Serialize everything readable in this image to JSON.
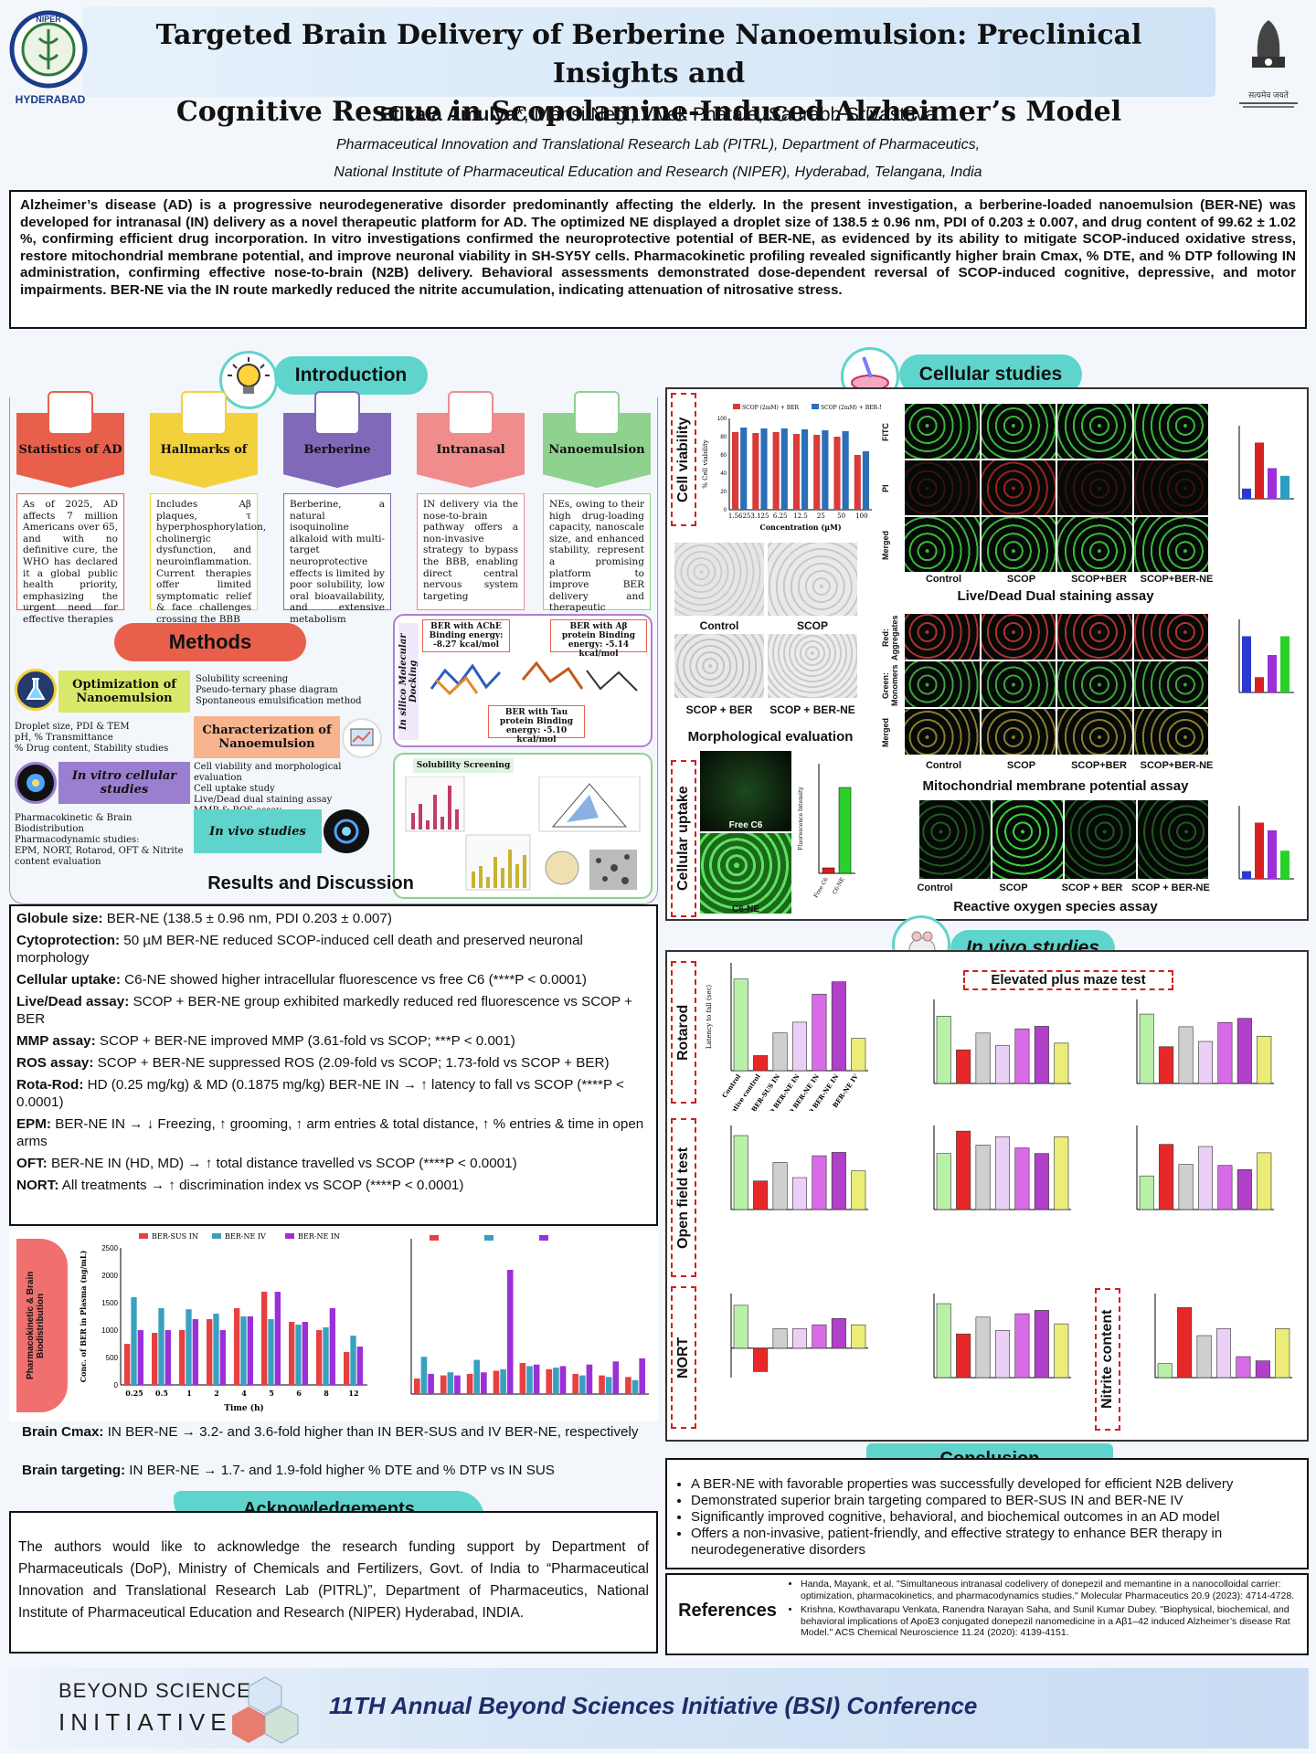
{
  "header": {
    "title_line1": "Targeted Brain Delivery of Berberine Nanoemulsion: Preclinical Insights and",
    "title_line2": "Cognitive Rescue in Scopolamine-Induced Alzheimer’s Model",
    "authors_first": "Etikala Amulya",
    "authors_rest": "*, Mansi Negi, Vivek Phatale, Saurabh Srivastava",
    "affiliation_1": "Pharmaceutical Innovation and Translational Research Lab (PITRL), Department of Pharmaceutics,",
    "affiliation_2": "National Institute of Pharmaceutical Education and Research (NIPER), Hyderabad, Telangana, India",
    "logo_left_text": "HYDERABAD",
    "logo_left_ring": "NIPER",
    "logo_right_text": "सत्यमेव जयते"
  },
  "abstract": "Alzheimer’s disease (AD) is a progressive neurodegenerative disorder predominantly affecting the elderly. In the present investigation, a berberine-loaded nanoemulsion (BER-NE) was developed for intranasal (IN) delivery as a novel therapeutic platform for AD. The optimized NE displayed a droplet size of 138.5 ± 0.96 nm, PDI of 0.203 ± 0.007, and drug content of 99.62 ± 1.02 %, confirming efficient drug incorporation. In vitro investigations confirmed the neuroprotective potential of BER-NE, as evidenced by its ability to mitigate SCOP-induced oxidative stress, restore mitochondrial membrane potential, and improve neuronal viability in SH-SY5Y cells. Pharmacokinetic profiling revealed significantly higher brain Cmax, % DTE, and % DTP following IN administration, confirming effective nose-to-brain (N2B) delivery. Behavioral assessments demonstrated dose-dependent reversal of SCOP-induced cognitive, depressive, and motor impairments. BER-NE via the IN route markedly reduced the nitrite accumulation, indicating attenuation of nitrosative stress.",
  "introduction": {
    "heading": "Introduction",
    "cards": [
      {
        "title": "Statistics of AD",
        "color": "#e8604c",
        "text": "As of 2025, AD affects 7 million Americans over 65, and with no definitive cure, the WHO has declared it a global public health priority, emphasizing the urgent need for effective therapies"
      },
      {
        "title": "Hallmarks of AD",
        "color": "#f2d13c",
        "text": "Includes Aβ plaques, τ hyperphosphorylation, cholinergic dysfunction, and neuroinflammation. Current therapies offer limited symptomatic relief & face challenges crossing the BBB"
      },
      {
        "title": "Berberine",
        "color": "#7f69b8",
        "text": "Berberine, a natural isoquinoline alkaloid with multi-target neuroprotective effects is limited by poor solubility, low oral bioavailability, and extensive metabolism"
      },
      {
        "title": "Intranasal route",
        "color": "#f08c8c",
        "text": "IN delivery via the nose-to-brain pathway offers a non-invasive strategy to bypass the BBB, enabling direct central nervous system targeting"
      },
      {
        "title": "Nanoemulsion",
        "color": "#8fd18f",
        "text": "NEs, owing to their high drug-loading capacity, nanoscale size, and enhanced stability, represent a promising platform to improve BER delivery and therapeutic efficacy in AD"
      }
    ]
  },
  "methods": {
    "heading": "Methods",
    "opt_title": "Optimization of Nanoemulsion",
    "opt_items": [
      "Solubility screening",
      "Pseudo-ternary phase diagram",
      "Spontaneous emulsification method"
    ],
    "char_left": [
      "Droplet size, PDI & TEM",
      "pH, % Transmittance",
      "% Drug content, Stability studies"
    ],
    "char_title": "Characterization of Nanoemulsion",
    "invitro_title": "In vitro cellular studies",
    "invitro_items": [
      "Cell viability and morphological evaluation",
      "Cell uptake study",
      "Live/Dead dual staining assay",
      "MMP & ROS assay"
    ],
    "invivo_left": [
      "Pharmacokinetic & Brain Biodistribution",
      "Pharmacodynamic studies:",
      "EPM, NORT, Rotarod, OFT & Nitrite content evaluation"
    ],
    "invivo_title": "In vivo studies",
    "docking_label": "In silico Molecular Docking",
    "dock_ache": "BER with AChE Binding energy: -8.27 kcal/mol",
    "dock_abeta": "BER with Aβ protein Binding energy: -5.14 kcal/mol",
    "dock_tau": "BER with Tau protein Binding energy: -5.10 kcal/mol",
    "solubility_label": "Solubility Screening"
  },
  "results": {
    "heading": "Results and Discussion",
    "lines": [
      {
        "label": "Globule size:",
        "text": " BER-NE (138.5 ± 0.96 nm, PDI 0.203 ± 0.007)"
      },
      {
        "label": "Cytoprotection:",
        "text": " 50 µM BER-NE reduced SCOP-induced cell death and preserved neuronal morphology"
      },
      {
        "label": "Cellular uptake:",
        "text": " C6-NE showed higher intracellular fluorescence vs free C6 (****P < 0.0001)"
      },
      {
        "label": "Live/Dead assay:",
        "text": " SCOP + BER-NE group exhibited markedly reduced red fluorescence vs SCOP + BER"
      },
      {
        "label": "MMP assay:",
        "text": " SCOP + BER-NE improved MMP (3.61-fold vs SCOP; ***P < 0.001)"
      },
      {
        "label": "ROS assay:",
        "text": " SCOP + BER-NE suppressed ROS (2.09-fold vs SCOP; 1.73-fold vs SCOP + BER)"
      },
      {
        "label": "Rota-Rod:",
        "text": " HD (0.25 mg/kg) & MD (0.1875 mg/kg) BER-NE IN → ↑ latency to fall vs SCOP (****P < 0.0001)"
      },
      {
        "label": "EPM:",
        "text": " BER-NE IN → ↓ Freezing, ↑ grooming, ↑ arm entries & total distance, ↑ % entries & time in open arms"
      },
      {
        "label": "OFT:",
        "text": " BER-NE IN (HD, MD) → ↑ total distance travelled vs SCOP (****P < 0.0001)"
      },
      {
        "label": "NORT:",
        "text": " All treatments → ↑ discrimination index vs SCOP (****P < 0.0001)"
      }
    ],
    "pk_side_label": "Pharmacokinetic & Brain Biodistribution",
    "brain_cmax_label": "Brain Cmax:",
    "brain_cmax_text": " IN BER-NE → 3.2- and 3.6-fold higher than IN BER-SUS and IV BER-NE, respectively",
    "brain_target_label": "Brain targeting:",
    "brain_target_text": " IN BER-NE → 1.7- and 1.9-fold higher % DTE and % DTP vs IN SUS"
  },
  "acknowledgements": {
    "heading": "Acknowledgements",
    "text": "The authors would like to acknowledge the research funding support by Department of Pharmaceuticals (DoP), Ministry of Chemicals and Fertilizers, Govt. of India to “Pharmaceutical Innovation and Translational Research Lab (PITRL)”, Department of Pharmaceutics, National Institute of Pharmaceutical Education and Research (NIPER) Hyderabad, INDIA."
  },
  "cellular": {
    "heading": "Cellular studies",
    "cell_viability": "Cell viability",
    "cellular_uptake": "Cellular uptake",
    "morph_caption": "Morphological evaluation",
    "morph_labels": [
      "Control",
      "SCOP",
      "SCOP + BER",
      "SCOP + BER-NE"
    ],
    "uptake_labels": [
      "Free C6",
      "C6-NE"
    ],
    "livedead_caption": "Live/Dead Dual staining assay",
    "livedead_rows": [
      "FITC",
      "PI",
      "Merged"
    ],
    "mmp_caption": "Mitochondrial membrane potential assay",
    "mmp_rows": [
      "Red: Aggregates",
      "Green: Monomers",
      "Merged"
    ],
    "ros_caption": "Reactive oxygen species assay",
    "group_labels": [
      "Control",
      "SCOP",
      "SCOP+BER",
      "SCOP+BER-NE"
    ],
    "ros_labels": [
      "Control",
      "SCOP",
      "SCOP + BER",
      "SCOP + BER-NE"
    ]
  },
  "invivo": {
    "heading": "In vivo studies",
    "epm_label": "Elevated plus maze test",
    "rotarod": "Rotarod",
    "oft": "Open field test",
    "nort": "NORT",
    "nitrite": "Nitrite content"
  },
  "conclusion": {
    "heading": "Conclusion",
    "items": [
      "A BER-NE with favorable properties was successfully developed for efficient N2B delivery",
      "Demonstrated superior brain targeting compared to BER-SUS IN and BER-NE IV",
      "Significantly improved cognitive, behavioral, and biochemical outcomes in an AD model",
      "Offers a non-invasive, patient-friendly, and effective strategy to enhance BER therapy in neurodegenerative disorders"
    ]
  },
  "references": {
    "heading": "References",
    "items": [
      "Handa, Mayank, et al. \"Simultaneous intranasal codelivery of donepezil and memantine in a nanocolloidal carrier: optimization, pharmacokinetics, and pharmacodynamics studies.\" Molecular Pharmaceutics 20.9 (2023): 4714-4728.",
      "Krishna, Kowthavarapu Venkata, Ranendra Narayan Saha, and Sunil Kumar Dubey. \"Biophysical, biochemical, and behavioral implications of ApoE3 conjugated donepezil nanomedicine in a Aβ1–42 induced Alzheimer’s disease Rat Model.\" ACS Chemical Neuroscience 11.24 (2020): 4139-4151."
    ]
  },
  "footer": {
    "bsi_line1": "BEYOND SCIENCES",
    "bsi_line2": "INITIATIVE",
    "conference": "11TH Annual Beyond Sciences Initiative (BSI) Conference"
  },
  "chart_data": [
    {
      "type": "bar",
      "title": "",
      "xlabel": "Concentration (µM)",
      "ylabel": "% Cell viability",
      "categories": [
        "1.5625",
        "3.125",
        "6.25",
        "12.5",
        "25",
        "50",
        "100"
      ],
      "ylim": [
        0,
        100
      ],
      "series": [
        {
          "name": "SCOP (2mM) + BER",
          "color": "#d93a3a",
          "values": [
            85,
            84,
            85,
            83,
            82,
            80,
            60
          ]
        },
        {
          "name": "SCOP (2mM) + BER-NE",
          "color": "#2a6fb8",
          "values": [
            90,
            89,
            89,
            88,
            87,
            86,
            64
          ]
        }
      ]
    },
    {
      "type": "bar",
      "xlabel": "",
      "ylabel": "Fluorescence Intensity",
      "categories": [
        "Free C6",
        "C6-NE"
      ],
      "ylim": [
        0,
        300
      ],
      "series": [
        {
          "name": "",
          "values": [
            15,
            235
          ]
        }
      ]
    },
    {
      "type": "bar",
      "xlabel": "",
      "ylabel": "Latency to fall (sec)",
      "categories": [
        "Control",
        "Negative control",
        "BER-SUS IN",
        "LD BER-NE IN",
        "MD BER-NE IN",
        "HD BER-NE IN",
        "BER-NE IV"
      ],
      "ylim": [
        0,
        200
      ],
      "series": [
        {
          "name": "",
          "values": [
            170,
            28,
            70,
            90,
            142,
            165,
            60
          ]
        }
      ]
    },
    {
      "type": "line",
      "xlabel": "Time (h)",
      "ylabel": "Conc. of BER in Plasma (ng/mL)",
      "categories": [
        "0.25",
        "0.5",
        "1",
        "2",
        "4",
        "5",
        "6",
        "8",
        "12"
      ],
      "ylim": [
        0,
        2500
      ],
      "series": [
        {
          "name": "BER-SUS IN",
          "values": [
            750,
            950,
            1000,
            1200,
            1400,
            1700,
            1150,
            1000,
            600
          ]
        },
        {
          "name": "BER-NE IV",
          "values": [
            1600,
            1400,
            1380,
            1300,
            1250,
            1200,
            1100,
            1050,
            900
          ]
        },
        {
          "name": "BER-NE IN",
          "values": [
            1000,
            1000,
            1200,
            1000,
            1250,
            1700,
            1150,
            1400,
            700
          ]
        }
      ]
    }
  ]
}
